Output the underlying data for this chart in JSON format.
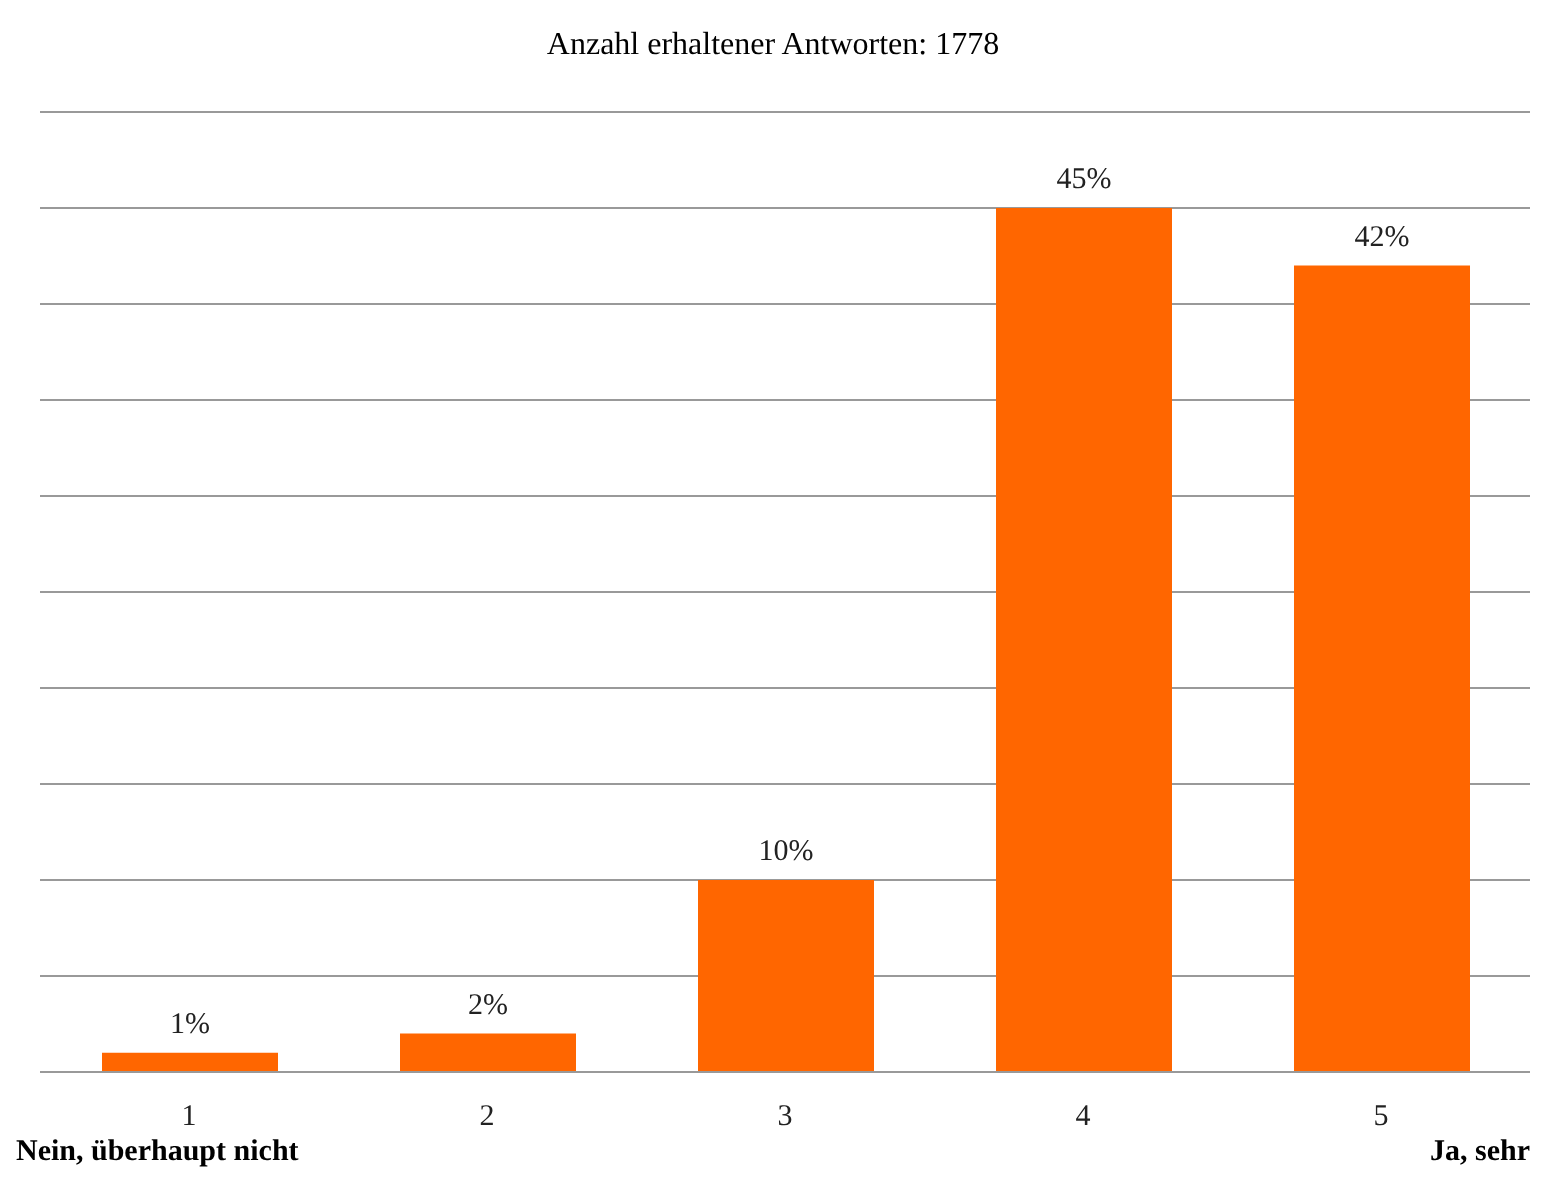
{
  "chart_data": {
    "type": "bar",
    "title": "Anzahl erhaltener Antworten: 1778",
    "categories": [
      "1",
      "2",
      "3",
      "4",
      "5"
    ],
    "values": [
      1,
      2,
      10,
      45,
      42
    ],
    "value_labels": [
      "1%",
      "2%",
      "10%",
      "45%",
      "42%"
    ],
    "color": "#ff6600",
    "ylim": [
      0,
      50
    ],
    "yticks": [
      {
        "value": 0,
        "label": null
      },
      {
        "value": 5,
        "label": null
      },
      {
        "value": 10,
        "label": null
      },
      {
        "value": 15,
        "label": null
      },
      {
        "value": 20,
        "label": null
      },
      {
        "value": 25,
        "label": null
      },
      {
        "value": 30,
        "label": null
      },
      {
        "value": 35,
        "label": null
      },
      {
        "value": 40,
        "label": null
      },
      {
        "value": 45,
        "label": null
      },
      {
        "value": 50,
        "label": null
      }
    ],
    "tick_labels": "x",
    "grid": "y",
    "annotations": [
      "Nein, überhaupt nicht",
      "Ja, sehr"
    ]
  }
}
